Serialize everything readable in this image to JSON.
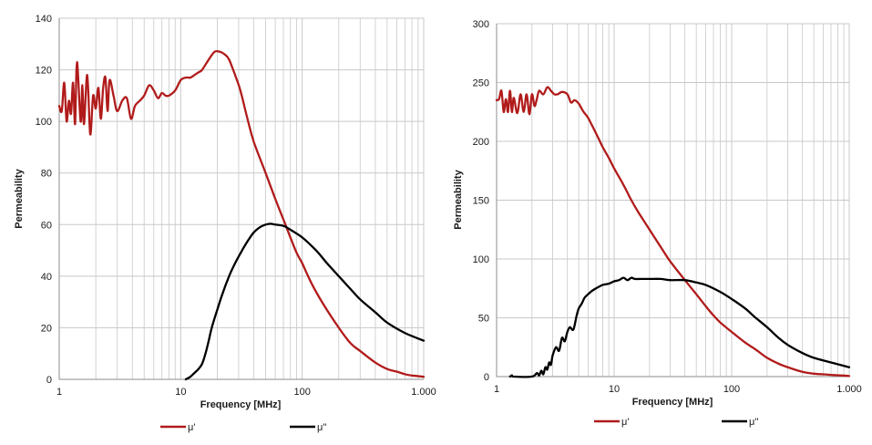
{
  "colors": {
    "mu_prime": "#b11b1b",
    "mu_double_prime": "#000000",
    "grid": "#c8c8c8",
    "frame": "#8c8c8c"
  },
  "chart_data": [
    {
      "type": "line",
      "xscale": "log",
      "xlim": [
        1,
        1000
      ],
      "ylim": [
        0,
        140
      ],
      "xticks": [
        1,
        10,
        100,
        1000
      ],
      "xtick_labels": [
        "1",
        "10",
        "100",
        "1.000"
      ],
      "yticks": [
        0,
        20,
        40,
        60,
        80,
        100,
        120,
        140
      ],
      "ytick_labels": [
        "0",
        "20",
        "40",
        "60",
        "80",
        "100",
        "120",
        "140"
      ],
      "xlabel": "Frequency [MHz]",
      "ylabel": "Permeability",
      "legend": [
        "μ'",
        "μ''"
      ],
      "series": [
        {
          "name": "μ'",
          "x": [
            1.0,
            1.05,
            1.1,
            1.15,
            1.2,
            1.25,
            1.3,
            1.35,
            1.4,
            1.5,
            1.55,
            1.6,
            1.7,
            1.8,
            1.9,
            2.0,
            2.1,
            2.2,
            2.3,
            2.4,
            2.5,
            2.6,
            2.8,
            3.0,
            3.3,
            3.6,
            3.9,
            4.2,
            4.6,
            5.0,
            5.5,
            6.0,
            6.5,
            7.0,
            7.5,
            8.0,
            9.0,
            10,
            11,
            12,
            13,
            14,
            15,
            17,
            19,
            21,
            23,
            25,
            28,
            31,
            35,
            40,
            50,
            60,
            70,
            80,
            90,
            100,
            120,
            150,
            200,
            250,
            300,
            400,
            500,
            600,
            700,
            800,
            1000
          ],
          "values": [
            106,
            104,
            115,
            100,
            108,
            103,
            115,
            99,
            123,
            100,
            114,
            99,
            118,
            95,
            110,
            105,
            113,
            101,
            113,
            117,
            104,
            116,
            110,
            104,
            108,
            109,
            101,
            106,
            108,
            110,
            114,
            112,
            109,
            111,
            110,
            110,
            112,
            116,
            117,
            117,
            118,
            119,
            120,
            124,
            127,
            127,
            126,
            124,
            118,
            112,
            102,
            92,
            80,
            70,
            62,
            55,
            49,
            45,
            37,
            29,
            20,
            14,
            11,
            6.5,
            4,
            3,
            2,
            1.5,
            1
          ]
        },
        {
          "name": "μ''",
          "x": [
            11,
            12,
            13,
            14,
            15,
            16,
            17,
            18,
            20,
            22,
            25,
            28,
            32,
            36,
            40,
            45,
            50,
            55,
            60,
            70,
            80,
            100,
            130,
            160,
            200,
            250,
            300,
            400,
            500,
            700,
            1000
          ],
          "values": [
            0,
            1,
            2.5,
            4,
            6,
            10,
            15,
            20,
            27,
            33,
            40,
            45,
            50,
            54,
            57,
            59,
            60,
            60.3,
            60,
            59.5,
            58,
            55,
            50,
            45,
            40,
            35,
            31,
            26,
            22,
            18,
            15
          ]
        }
      ]
    },
    {
      "type": "line",
      "xscale": "log",
      "xlim": [
        1,
        1000
      ],
      "ylim": [
        0,
        300
      ],
      "xticks": [
        1,
        10,
        100,
        1000
      ],
      "xtick_labels": [
        "1",
        "10",
        "100",
        "1.000"
      ],
      "yticks": [
        0,
        50,
        100,
        150,
        200,
        250,
        300
      ],
      "ytick_labels": [
        "0",
        "50",
        "100",
        "150",
        "200",
        "250",
        "300"
      ],
      "xlabel": "Frequency [MHz]",
      "ylabel": "Permeability",
      "legend": [
        "μ'",
        "μ''"
      ],
      "series": [
        {
          "name": "μ'",
          "x": [
            1.0,
            1.05,
            1.1,
            1.15,
            1.2,
            1.25,
            1.3,
            1.35,
            1.4,
            1.5,
            1.6,
            1.7,
            1.8,
            1.9,
            2.0,
            2.1,
            2.2,
            2.3,
            2.5,
            2.7,
            2.9,
            3.1,
            3.3,
            3.6,
            4.0,
            4.3,
            4.6,
            5.0,
            5.5,
            6.0,
            7.0,
            8.0,
            9.0,
            10,
            12,
            14,
            16,
            20,
            25,
            30,
            40,
            50,
            60,
            70,
            80,
            100,
            130,
            160,
            200,
            250,
            300,
            400,
            500,
            700,
            1000
          ],
          "values": [
            235,
            236,
            243,
            225,
            236,
            225,
            243,
            225,
            237,
            224,
            240,
            225,
            240,
            223,
            240,
            230,
            236,
            243,
            240,
            246,
            243,
            240,
            240,
            242,
            240,
            233,
            235,
            232,
            225,
            220,
            207,
            195,
            186,
            177,
            163,
            150,
            140,
            125,
            110,
            98,
            82,
            70,
            60,
            52,
            46,
            38,
            29,
            23,
            16,
            11,
            8,
            4,
            2.5,
            1.5,
            0.5
          ]
        },
        {
          "name": "μ''",
          "x": [
            1.3,
            1.35,
            1.4,
            2.0,
            2.2,
            2.3,
            2.4,
            2.5,
            2.6,
            2.7,
            2.8,
            2.9,
            3.0,
            3.2,
            3.4,
            3.6,
            3.8,
            4.0,
            4.2,
            4.5,
            4.8,
            5.0,
            5.3,
            5.6,
            6.0,
            6.5,
            7.0,
            8.0,
            9.0,
            10,
            11,
            12,
            13,
            14,
            15,
            17,
            20,
            25,
            30,
            40,
            50,
            60,
            80,
            100,
            130,
            160,
            200,
            250,
            300,
            400,
            500,
            700,
            1000
          ],
          "values": [
            0,
            1,
            0,
            0,
            3,
            1,
            5,
            2,
            8,
            6,
            12,
            10,
            18,
            25,
            22,
            33,
            30,
            38,
            42,
            40,
            52,
            58,
            62,
            67,
            70,
            73,
            75,
            78,
            79,
            81,
            82,
            84,
            82,
            84,
            83,
            83,
            83,
            83,
            82,
            82,
            80,
            78,
            72,
            66,
            58,
            50,
            42,
            33,
            27,
            20,
            16,
            12,
            8
          ]
        }
      ]
    }
  ]
}
